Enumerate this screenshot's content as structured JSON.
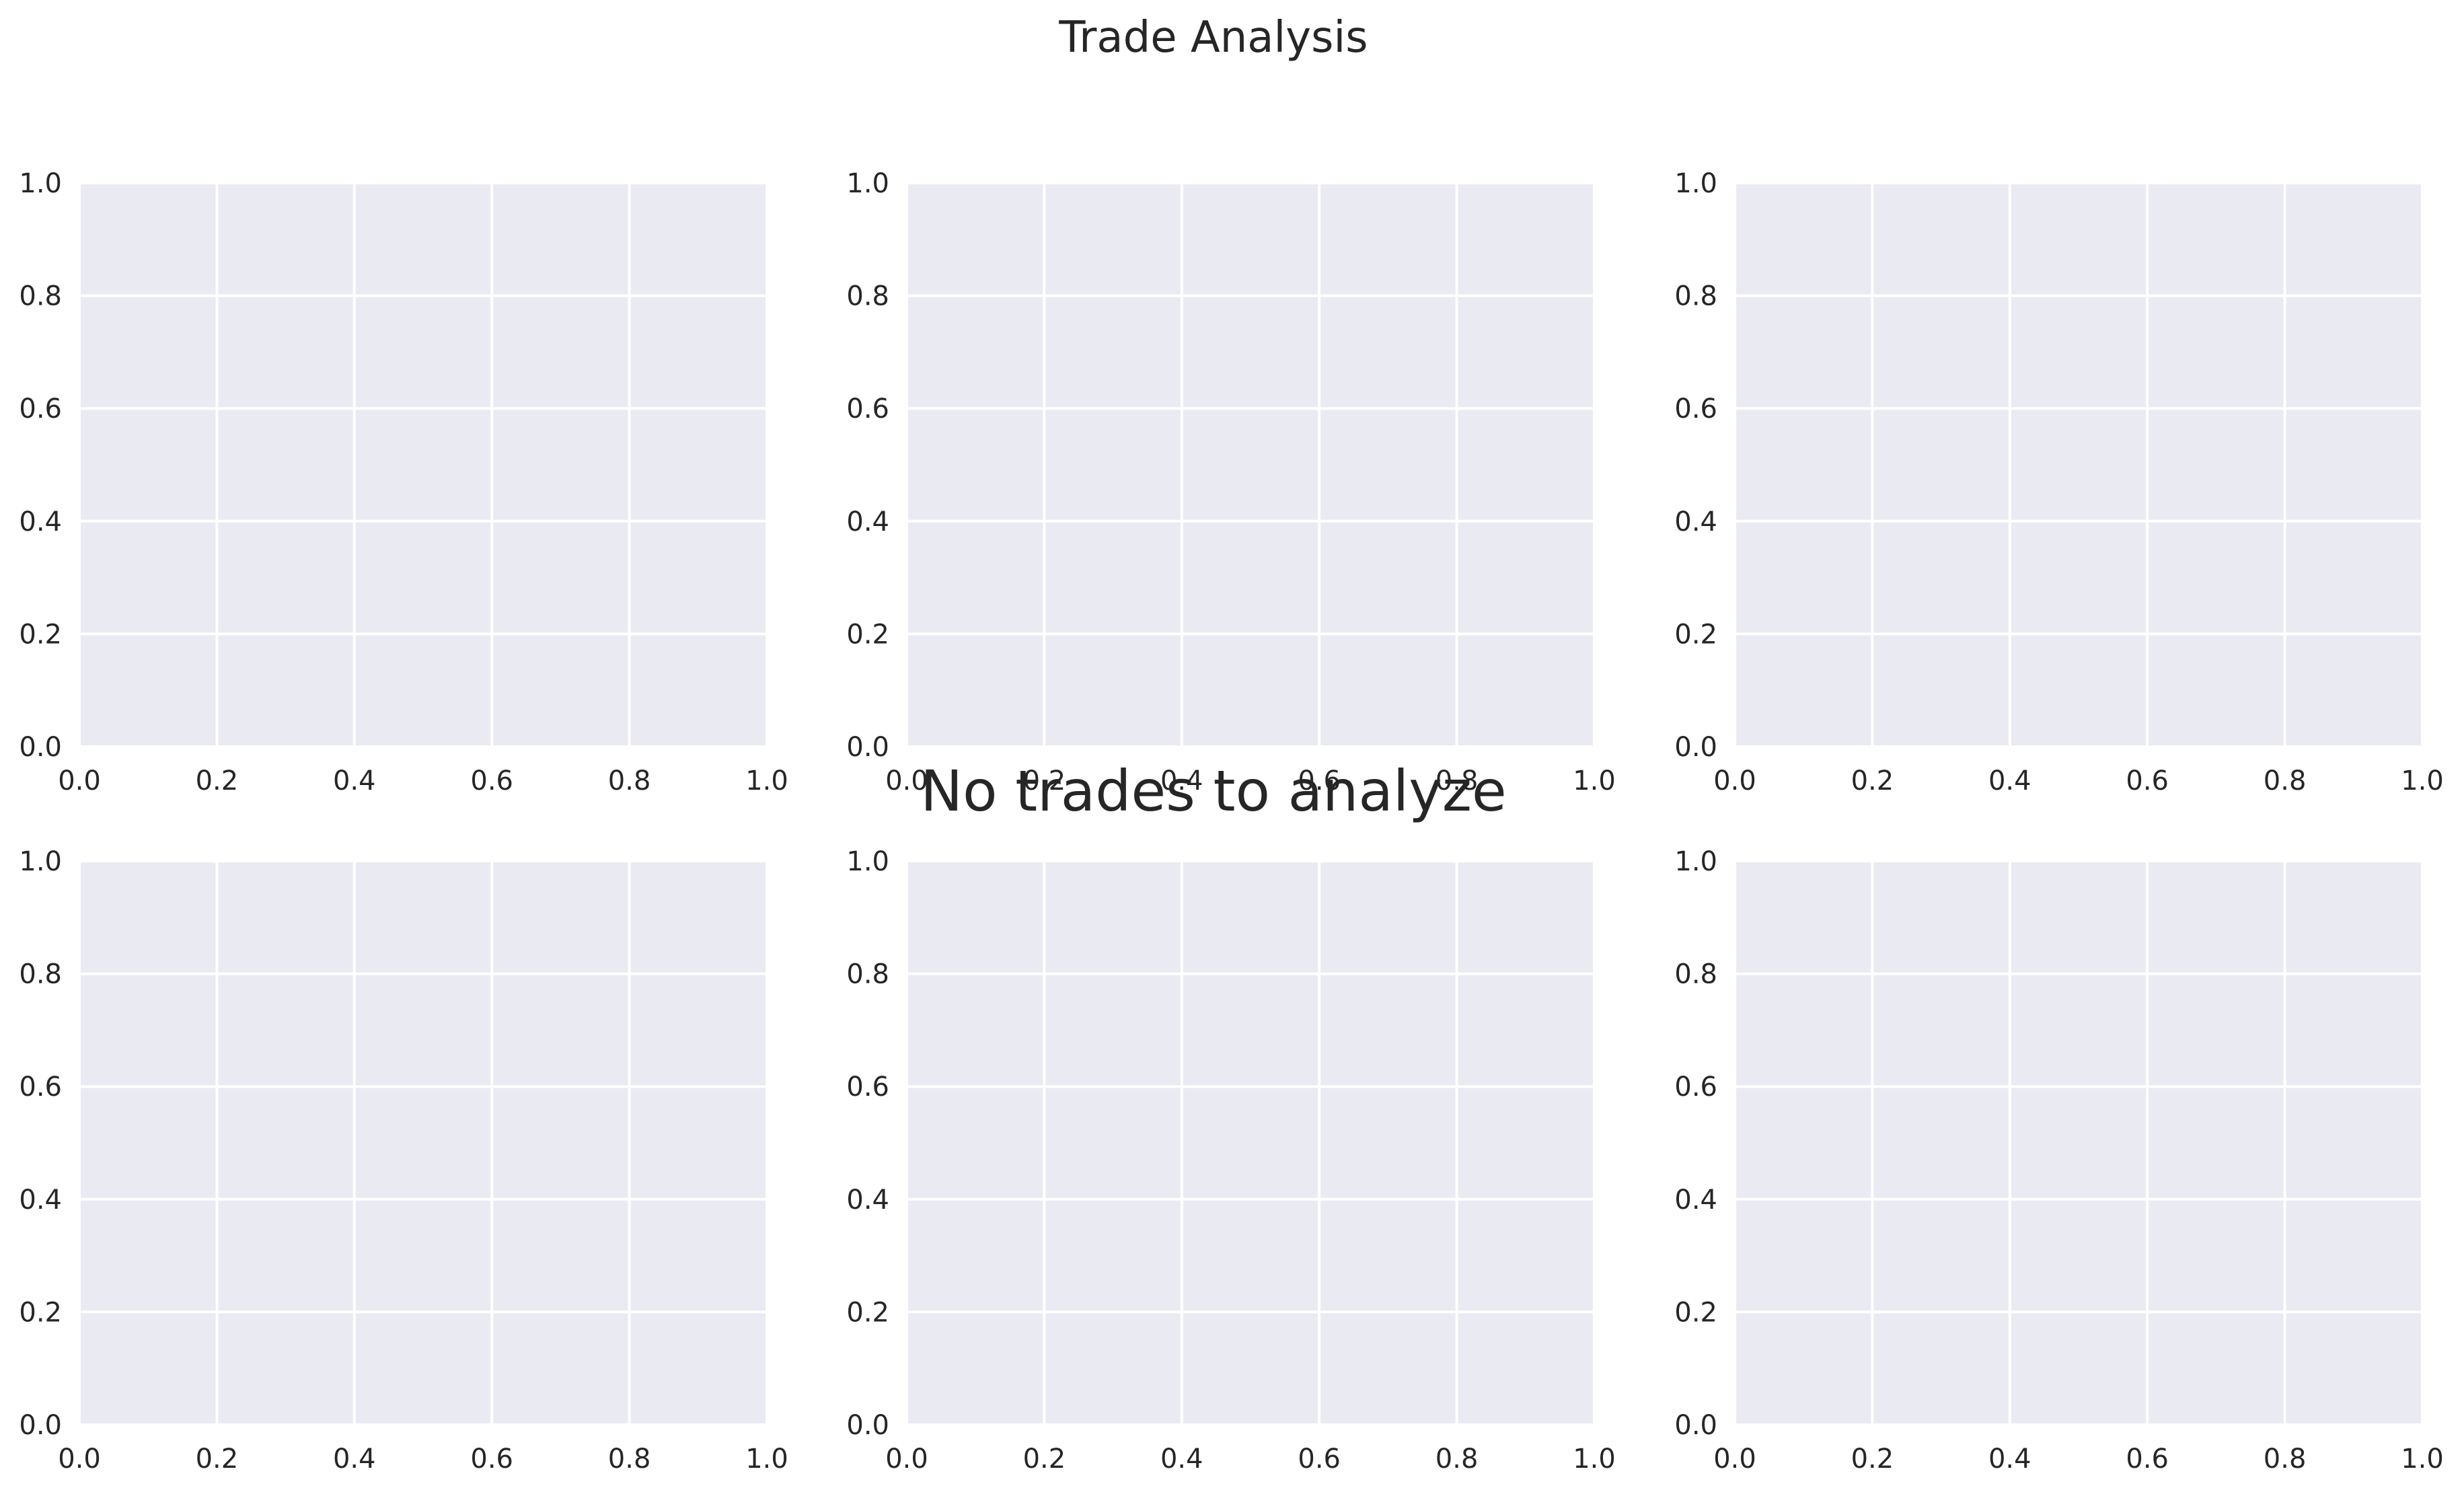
{
  "figure": {
    "title": "Trade Analysis",
    "message": "No trades to analyze",
    "background_color": "#ffffff",
    "text_color": "#262626"
  },
  "chart_data": [
    {
      "type": "scatter",
      "xlim": [
        0,
        1
      ],
      "ylim": [
        0,
        1
      ],
      "x_ticks": [
        "0.0",
        "0.2",
        "0.4",
        "0.6",
        "0.8",
        "1.0"
      ],
      "y_ticks": [
        "0.0",
        "0.2",
        "0.4",
        "0.6",
        "0.8",
        "1.0"
      ],
      "grid": true,
      "series": [],
      "axes_face_color": "#eaeaf2",
      "grid_color": "#ffffff"
    },
    {
      "type": "scatter",
      "xlim": [
        0,
        1
      ],
      "ylim": [
        0,
        1
      ],
      "x_ticks": [
        "0.0",
        "0.2",
        "0.4",
        "0.6",
        "0.8",
        "1.0"
      ],
      "y_ticks": [
        "0.0",
        "0.2",
        "0.4",
        "0.6",
        "0.8",
        "1.0"
      ],
      "grid": true,
      "series": [],
      "axes_face_color": "#eaeaf2",
      "grid_color": "#ffffff"
    },
    {
      "type": "scatter",
      "xlim": [
        0,
        1
      ],
      "ylim": [
        0,
        1
      ],
      "x_ticks": [
        "0.0",
        "0.2",
        "0.4",
        "0.6",
        "0.8",
        "1.0"
      ],
      "y_ticks": [
        "0.0",
        "0.2",
        "0.4",
        "0.6",
        "0.8",
        "1.0"
      ],
      "grid": true,
      "series": [],
      "axes_face_color": "#eaeaf2",
      "grid_color": "#ffffff"
    },
    {
      "type": "scatter",
      "xlim": [
        0,
        1
      ],
      "ylim": [
        0,
        1
      ],
      "x_ticks": [
        "0.0",
        "0.2",
        "0.4",
        "0.6",
        "0.8",
        "1.0"
      ],
      "y_ticks": [
        "0.0",
        "0.2",
        "0.4",
        "0.6",
        "0.8",
        "1.0"
      ],
      "grid": true,
      "series": [],
      "axes_face_color": "#eaeaf2",
      "grid_color": "#ffffff"
    },
    {
      "type": "scatter",
      "xlim": [
        0,
        1
      ],
      "ylim": [
        0,
        1
      ],
      "x_ticks": [
        "0.0",
        "0.2",
        "0.4",
        "0.6",
        "0.8",
        "1.0"
      ],
      "y_ticks": [
        "0.0",
        "0.2",
        "0.4",
        "0.6",
        "0.8",
        "1.0"
      ],
      "grid": true,
      "series": [],
      "axes_face_color": "#eaeaf2",
      "grid_color": "#ffffff"
    },
    {
      "type": "scatter",
      "xlim": [
        0,
        1
      ],
      "ylim": [
        0,
        1
      ],
      "x_ticks": [
        "0.0",
        "0.2",
        "0.4",
        "0.6",
        "0.8",
        "1.0"
      ],
      "y_ticks": [
        "0.0",
        "0.2",
        "0.4",
        "0.6",
        "0.8",
        "1.0"
      ],
      "grid": true,
      "series": [],
      "axes_face_color": "#eaeaf2",
      "grid_color": "#ffffff"
    }
  ]
}
